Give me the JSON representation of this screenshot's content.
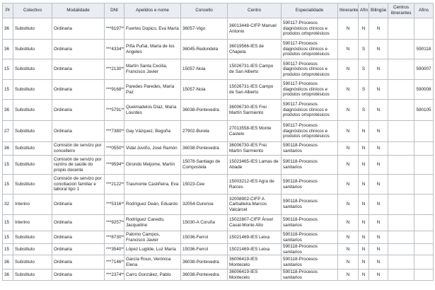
{
  "columns": [
    "Pr",
    "Colectivo",
    "Modalidade",
    "DNI",
    "Apelidos e nome",
    "Concello",
    "Centro",
    "Especialidade",
    "Itinerante",
    "Afín",
    "Bilingüe",
    "Centros itinerantes",
    "Afins"
  ],
  "rows": [
    [
      "36",
      "Substituto",
      "Ordinaria",
      "***6197**",
      "Fuertes Dopico, Eva María",
      "36057-Vigo",
      "36013448-CIFP Manuel Antonio",
      "590117-Procesos diagnósticos clínicos e produtos ortoprotésicos",
      "N",
      "N",
      "N",
      "",
      ""
    ],
    [
      "36",
      "Substituto",
      "Ordinaria",
      "***4334**",
      "Piña Puñal, María de los Angeles",
      "36045-Redondela",
      "36019566-IES de Chapela",
      "590117-Procesos diagnósticos clínicos e produtos ortoprotésicos",
      "N",
      "S",
      "N",
      "",
      "590118"
    ],
    [
      "15",
      "Substituto",
      "Ordinaria",
      "***2130**",
      "Martín Santa Cecilia, Francisco Javier",
      "15057-Noia",
      "15026731-IES Campo de San Alberto",
      "590117-Procesos diagnósticos clínicos e produtos ortoprotésicos",
      "N",
      "S",
      "N",
      "",
      "590007"
    ],
    [
      "15",
      "Substituto",
      "Ordinaria",
      "***9168**",
      "Paredes Paredes, María Paz",
      "15057-Noia",
      "15026731-IES Campo de San Alberto",
      "590117-Procesos diagnósticos clínicos e produtos ortoprotésicos",
      "N",
      "S",
      "N",
      "",
      "590008"
    ],
    [
      "36",
      "Substituto",
      "Ordinaria",
      "***5791**",
      "Queimadelos Díaz, María Lourdes",
      "36038-Pontevedra",
      "36006730-IES Frei Martín Sarmiento",
      "590117-Procesos diagnósticos clínicos e produtos ortoprotésicos",
      "N",
      "S",
      "N",
      "",
      "590105"
    ],
    [
      "27",
      "Substituto",
      "Ordinaria",
      "***7380**",
      "Gay Vázquez, Begoña",
      "27902-Burela",
      "27013558-IES Monte Castelo",
      "590117-Procesos diagnósticos clínicos e produtos ortoprotésicos",
      "N",
      "N",
      "N",
      "",
      ""
    ],
    [
      "36",
      "Substituto",
      "Comisión de servizo por concelleiro",
      "***0550**",
      "Vidal Juviño, José Ramón",
      "36038-Pontevedra",
      "36006730-IES Frei Martín Sarmiento",
      "590118-Procesos sanitarios",
      "N",
      "N",
      "N",
      "",
      ""
    ],
    [
      "15",
      "Substituto",
      "Comisión de servizo por razóns de saúde do propio docente",
      "***9594**",
      "Girondo Meijome, Martín",
      "15078-Santiago de Compostela",
      "15023465-IES Lamas de Abade",
      "590118-Procesos sanitarios",
      "N",
      "N",
      "N",
      "",
      ""
    ],
    [
      "15",
      "Substituto",
      "Comisión de servizo por conciliación familiar e laboral tipo 1",
      "***2122**",
      "Trasmonte Castiñeira, Eva",
      "15023-Cee",
      "15003212-IES Agra de Raíces",
      "590118-Procesos sanitarios",
      "N",
      "N",
      "N",
      "",
      ""
    ],
    [
      "32",
      "Interino",
      "Ordinaria",
      "***5316**",
      "Rodríguez Deán, Eduardo",
      "32054-Ourense",
      "32008902-CIFP A Carballeira-Marcos Valcárcel",
      "590118-Procesos sanitarios",
      "N",
      "N",
      "N",
      "",
      ""
    ],
    [
      "15",
      "Interino",
      "Ordinaria",
      "***9257**",
      "Rodríguez Canedo, Jacqueline",
      "15030-A Coruña",
      "15022807-CIFP Ánxel Casal-Monte Alto",
      "590118-Procesos sanitarios",
      "N",
      "N",
      "N",
      "",
      ""
    ],
    [
      "15",
      "Substituto",
      "Ordinaria",
      "***8730**",
      "Palomo Campos, Francisco Javier",
      "15036-Ferrol",
      "15021469-IES Leixa",
      "590118-Procesos sanitarios",
      "N",
      "N",
      "N",
      "",
      ""
    ],
    [
      "15",
      "Substituto",
      "Ordinaria",
      "***3540**",
      "López Lugilde, Luz María",
      "15036-Ferrol",
      "15021469-IES Leixa",
      "590118-Procesos sanitarios",
      "N",
      "N",
      "N",
      "",
      ""
    ],
    [
      "36",
      "Substituto",
      "Ordinaria",
      "***7146**",
      "García Roux, Verónica Elena",
      "36038-Pontevedra",
      "36006419-IES Montecelo",
      "590118-Procesos sanitarios",
      "N",
      "N",
      "N",
      "",
      ""
    ],
    [
      "36",
      "Substituto",
      "Ordinaria",
      "***2374**",
      "Carro González, Pablo",
      "36038-Pontevedra",
      "36006419-IES Montecelo",
      "590118-Procesos sanitarios",
      "N",
      "N",
      "N",
      "",
      ""
    ]
  ]
}
